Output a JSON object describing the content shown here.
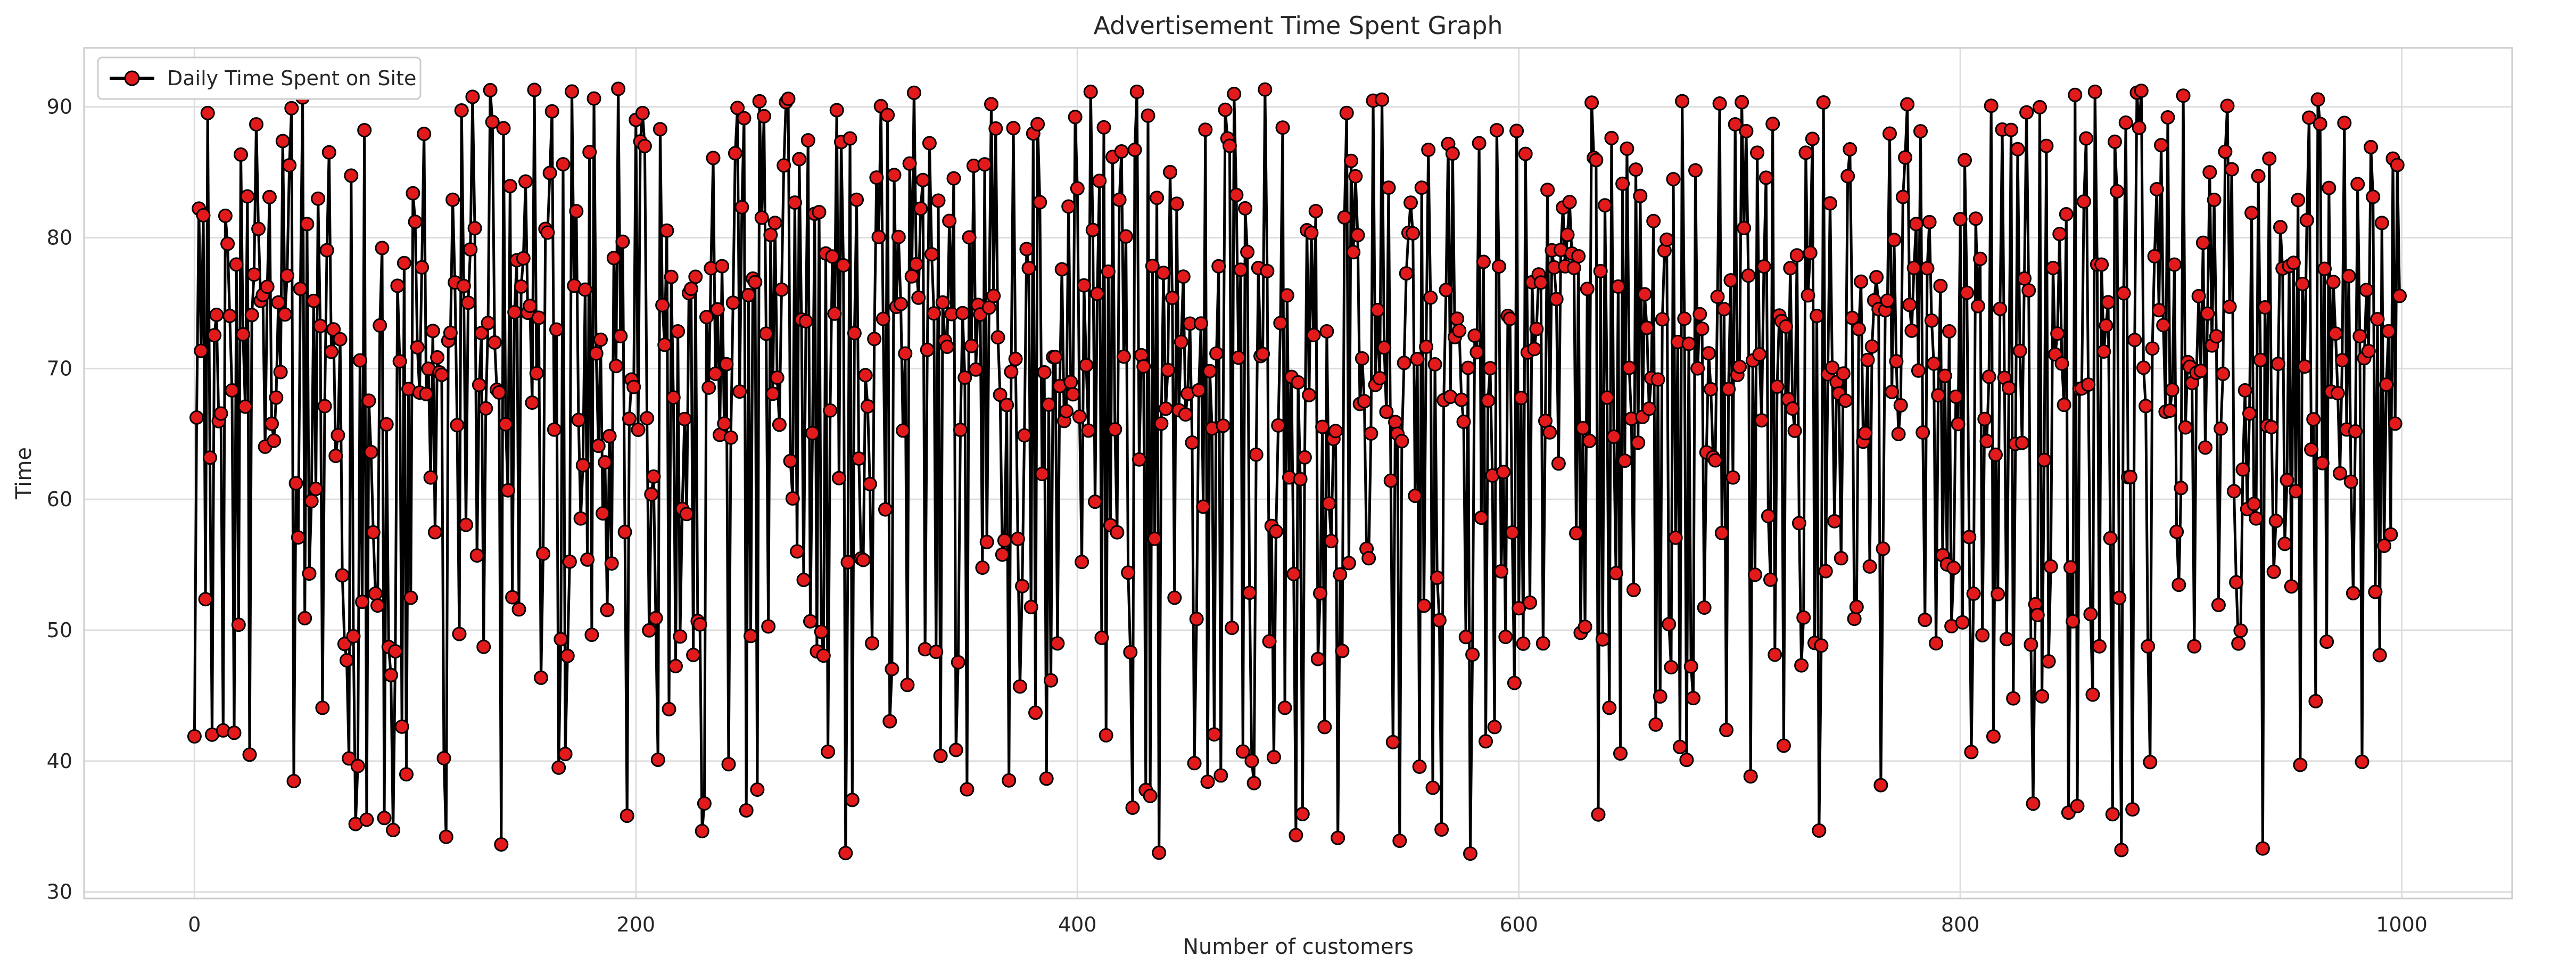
{
  "chart_data": {
    "type": "line",
    "title": "Advertisement Time Spent Graph",
    "xlabel": "Number of customers",
    "ylabel": "Time",
    "xlim": [
      -50,
      1050
    ],
    "ylim": [
      29.5,
      94.5
    ],
    "xticks": [
      0,
      200,
      400,
      600,
      800,
      1000
    ],
    "yticks": [
      30,
      40,
      50,
      60,
      70,
      80,
      90
    ],
    "grid": true,
    "legend_position": "top-left",
    "series": [
      {
        "name": "Daily Time Spent on Site",
        "line_color": "#000000",
        "marker_fill": "#e31a1c",
        "marker_edge": "#000000",
        "x_start": 0,
        "x_step": 1,
        "count": 1000,
        "value_range": [
          32.6,
          91.4
        ]
      }
    ]
  }
}
